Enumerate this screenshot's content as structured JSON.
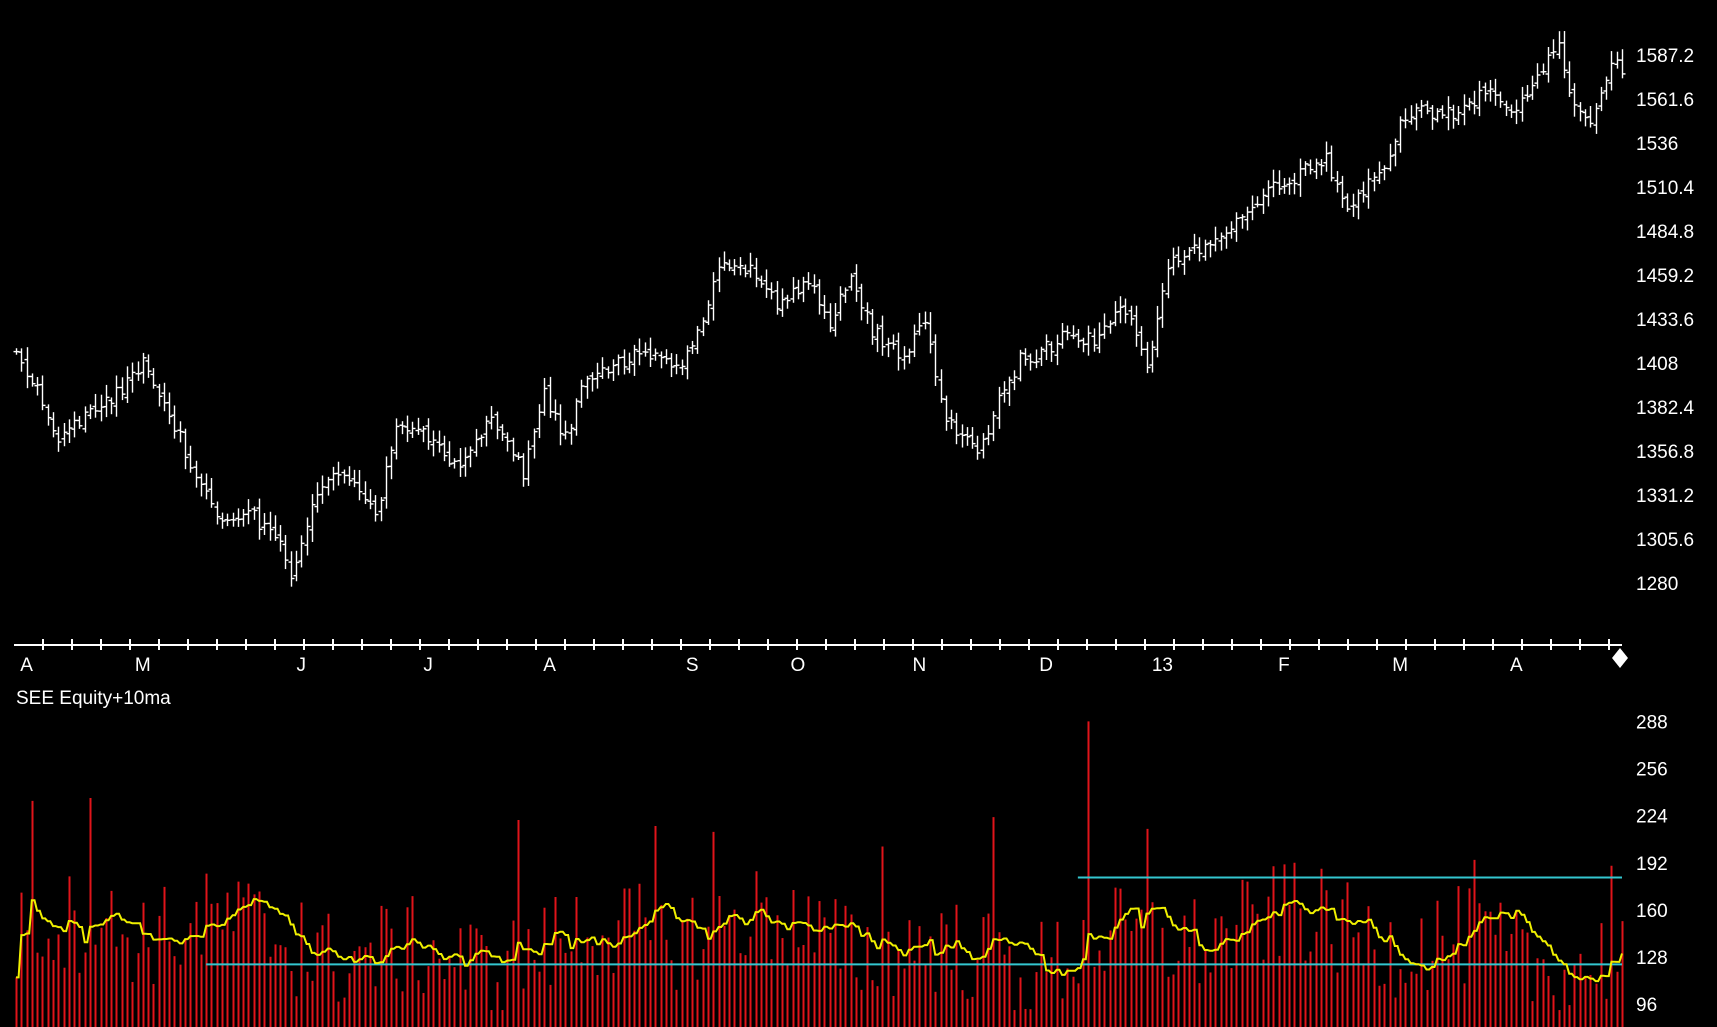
{
  "chart_data": [
    {
      "type": "ohlc-bar",
      "title": "",
      "y_ticks": [
        "1587.2",
        "1561.6",
        "1536",
        "1510.4",
        "1484.8",
        "1459.2",
        "1433.6",
        "1408",
        "1382.4",
        "1356.8",
        "1331.2",
        "1305.6",
        "1280"
      ],
      "ylim": [
        1262,
        1604
      ],
      "x_month_labels": [
        "A",
        "M",
        "J",
        "J",
        "A",
        "S",
        "O",
        "N",
        "D",
        "13",
        "F",
        "M",
        "A"
      ],
      "x_month_label_index": [
        2,
        24,
        54,
        78,
        101,
        128,
        148,
        171,
        195,
        217,
        240,
        262,
        284
      ],
      "close_anchors": [
        [
          0,
          1416
        ],
        [
          8,
          1366
        ],
        [
          18,
          1386
        ],
        [
          24,
          1407
        ],
        [
          30,
          1370
        ],
        [
          38,
          1320
        ],
        [
          44,
          1322
        ],
        [
          50,
          1300
        ],
        [
          52,
          1282
        ],
        [
          56,
          1328
        ],
        [
          62,
          1346
        ],
        [
          68,
          1320
        ],
        [
          72,
          1368
        ],
        [
          78,
          1366
        ],
        [
          84,
          1344
        ],
        [
          90,
          1377
        ],
        [
          96,
          1343
        ],
        [
          100,
          1390
        ],
        [
          104,
          1365
        ],
        [
          108,
          1402
        ],
        [
          114,
          1407
        ],
        [
          118,
          1416
        ],
        [
          124,
          1404
        ],
        [
          126,
          1403
        ],
        [
          130,
          1436
        ],
        [
          134,
          1467
        ],
        [
          140,
          1460
        ],
        [
          144,
          1442
        ],
        [
          150,
          1456
        ],
        [
          154,
          1432
        ],
        [
          158,
          1458
        ],
        [
          162,
          1426
        ],
        [
          168,
          1412
        ],
        [
          172,
          1430
        ],
        [
          176,
          1376
        ],
        [
          182,
          1355
        ],
        [
          186,
          1386
        ],
        [
          190,
          1410
        ],
        [
          194,
          1414
        ],
        [
          200,
          1426
        ],
        [
          204,
          1420
        ],
        [
          210,
          1440
        ],
        [
          214,
          1406
        ],
        [
          218,
          1464
        ],
        [
          224,
          1474
        ],
        [
          230,
          1487
        ],
        [
          236,
          1507
        ],
        [
          242,
          1516
        ],
        [
          248,
          1526
        ],
        [
          252,
          1496
        ],
        [
          258,
          1518
        ],
        [
          262,
          1547
        ],
        [
          266,
          1556
        ],
        [
          272,
          1552
        ],
        [
          278,
          1566
        ],
        [
          284,
          1554
        ],
        [
          288,
          1572
        ],
        [
          292,
          1598
        ],
        [
          294,
          1565
        ],
        [
          298,
          1545
        ],
        [
          302,
          1582
        ],
        [
          304,
          1580
        ]
      ],
      "volume": {
        "label": "SEE Equity+10ma",
        "y_ticks": [
          "288",
          "256",
          "224",
          "192",
          "160",
          "128",
          "96"
        ],
        "ylim": [
          90,
          293
        ],
        "ma_period": 10,
        "spikes": [
          [
            3,
            234
          ],
          [
            14,
            236
          ],
          [
            54,
            165
          ],
          [
            95,
            221
          ],
          [
            121,
            217
          ],
          [
            132,
            213
          ],
          [
            164,
            203
          ],
          [
            185,
            223
          ],
          [
            203,
            288
          ],
          [
            214,
            215
          ],
          [
            242,
            192
          ],
          [
            276,
            194
          ],
          [
            302,
            190
          ]
        ],
        "horizontal_levels": [
          {
            "value": 182,
            "from_index": 201,
            "to_index": 304,
            "color": "#33c6cf"
          },
          {
            "value": 123,
            "from_index": 36,
            "to_index": 304,
            "color": "#33c6cf"
          }
        ],
        "bar_color": "#e0141a",
        "ma_color": "#f0f000"
      }
    }
  ]
}
